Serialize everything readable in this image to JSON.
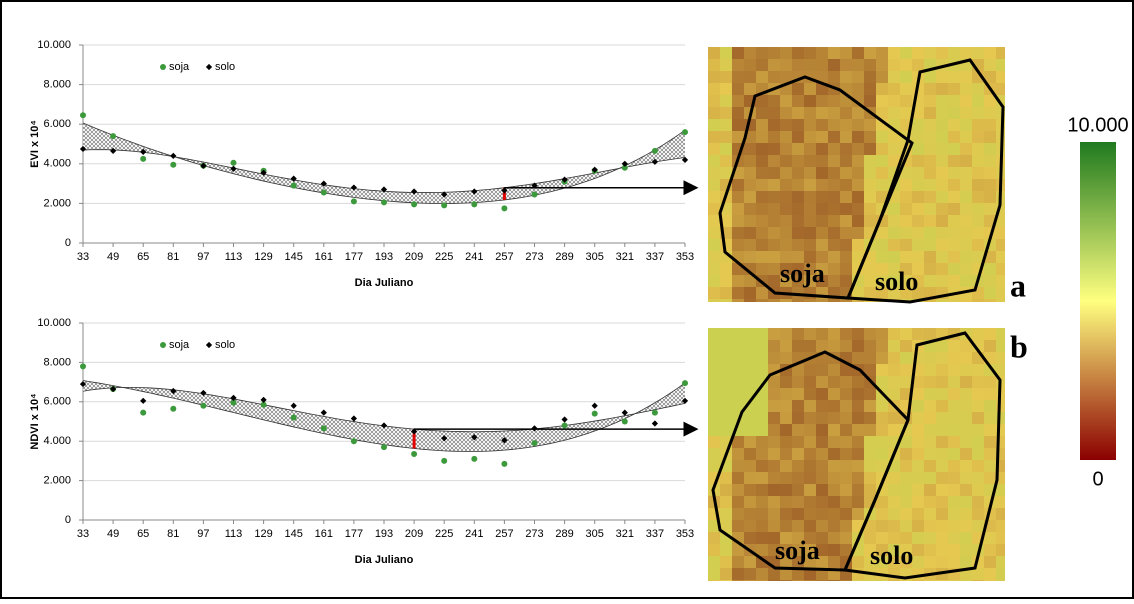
{
  "chart_data": [
    {
      "type": "scatter",
      "xlabel": "Dia Juliano",
      "ylabel": "EVI x 10⁴",
      "x": [
        33,
        49,
        65,
        81,
        97,
        113,
        129,
        145,
        161,
        177,
        193,
        209,
        225,
        241,
        257,
        273,
        289,
        305,
        321,
        337,
        353
      ],
      "series": [
        {
          "name": "soja",
          "color": "#3c9a3c",
          "marker": "circle",
          "values": [
            6450,
            5400,
            4250,
            3950,
            3900,
            4050,
            3650,
            2900,
            2550,
            2100,
            2050,
            1950,
            1900,
            1950,
            1750,
            2450,
            3100,
            3650,
            3800,
            4650,
            5600
          ]
        },
        {
          "name": "solo",
          "color": "#000000",
          "marker": "diamond",
          "values": [
            4750,
            4650,
            4600,
            4400,
            3900,
            3750,
            3550,
            3250,
            3000,
            2800,
            2700,
            2600,
            2450,
            2600,
            2650,
            2900,
            3200,
            3700,
            4000,
            4100,
            4200
          ]
        }
      ],
      "xlim": [
        33,
        353
      ],
      "xticks": [
        33,
        49,
        65,
        81,
        97,
        113,
        129,
        145,
        161,
        177,
        193,
        209,
        225,
        241,
        257,
        273,
        289,
        305,
        321,
        337,
        353
      ],
      "ylim": [
        0,
        10000
      ],
      "yticks": [
        0,
        {
          "value": 2000,
          "label": "2.000"
        },
        {
          "value": 4000,
          "label": "4.000"
        },
        {
          "value": 6000,
          "label": "6.000"
        },
        {
          "value": 8000,
          "label": "8.000"
        },
        {
          "value": 10000,
          "label": "10.000"
        }
      ],
      "grid": true,
      "trendline": true,
      "highlight_x": 257
    },
    {
      "type": "scatter",
      "xlabel": "Dia Juliano",
      "ylabel": "NDVI x 10⁴",
      "x": [
        33,
        49,
        65,
        81,
        97,
        113,
        129,
        145,
        161,
        177,
        193,
        209,
        225,
        241,
        257,
        273,
        289,
        305,
        321,
        337,
        353
      ],
      "series": [
        {
          "name": "soja",
          "color": "#3c9a3c",
          "marker": "circle",
          "values": [
            7800,
            6650,
            5450,
            5650,
            5800,
            5950,
            5850,
            5200,
            4650,
            4000,
            3700,
            3350,
            3000,
            3100,
            2850,
            3900,
            4800,
            5400,
            5000,
            5450,
            6950
          ]
        },
        {
          "name": "solo",
          "color": "#000000",
          "marker": "diamond",
          "values": [
            6900,
            6650,
            6050,
            6550,
            6450,
            6200,
            6100,
            5800,
            5450,
            5150,
            4800,
            4500,
            4150,
            4200,
            4050,
            4650,
            5100,
            5800,
            5450,
            4900,
            6050
          ]
        }
      ],
      "xlim": [
        33,
        353
      ],
      "xticks": [
        33,
        49,
        65,
        81,
        97,
        113,
        129,
        145,
        161,
        177,
        193,
        209,
        225,
        241,
        257,
        273,
        289,
        305,
        321,
        337,
        353
      ],
      "ylim": [
        0,
        10000
      ],
      "yticks": [
        0,
        {
          "value": 2000,
          "label": "2.000"
        },
        {
          "value": 4000,
          "label": "4.000"
        },
        {
          "value": 6000,
          "label": "6.000"
        },
        {
          "value": 8000,
          "label": "8.000"
        },
        {
          "value": 10000,
          "label": "10.000"
        }
      ],
      "grid": true,
      "trendline": true,
      "highlight_x": 209
    }
  ],
  "panels": [
    {
      "label": "a",
      "regions": [
        "soja",
        "solo"
      ]
    },
    {
      "label": "b",
      "regions": [
        "soja",
        "solo"
      ]
    }
  ],
  "colorbar": {
    "max_label": "10.000",
    "min_label": "0"
  }
}
